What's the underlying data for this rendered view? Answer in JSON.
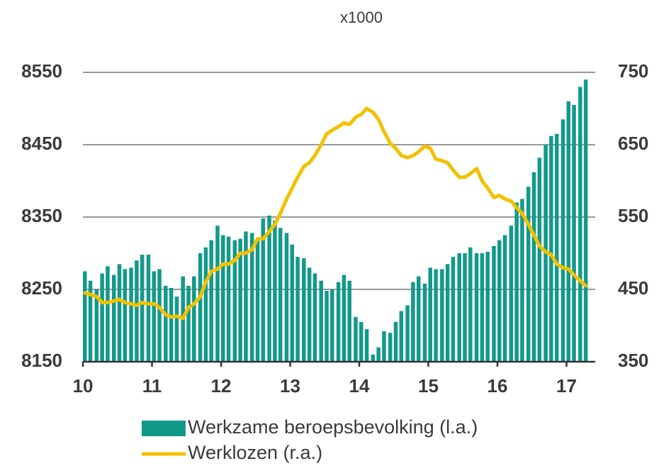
{
  "chart_data": {
    "type": "bar-line",
    "subtitle": "x1000",
    "x": [
      10,
      10.08,
      10.17,
      10.25,
      10.33,
      10.42,
      10.5,
      10.58,
      10.67,
      10.75,
      10.83,
      10.92,
      11,
      11.08,
      11.17,
      11.25,
      11.33,
      11.42,
      11.5,
      11.58,
      11.67,
      11.75,
      11.83,
      11.92,
      12,
      12.08,
      12.17,
      12.25,
      12.33,
      12.42,
      12.5,
      12.58,
      12.67,
      12.75,
      12.83,
      12.92,
      13,
      13.08,
      13.17,
      13.25,
      13.33,
      13.42,
      13.5,
      13.58,
      13.67,
      13.75,
      13.83,
      13.92,
      14,
      14.08,
      14.17,
      14.25,
      14.33,
      14.42,
      14.5,
      14.58,
      14.67,
      14.75,
      14.83,
      14.92,
      15,
      15.08,
      15.17,
      15.25,
      15.33,
      15.42,
      15.5,
      15.58,
      15.67,
      15.75,
      15.83,
      15.92,
      16,
      16.08,
      16.17,
      16.25,
      16.33,
      16.42,
      16.5,
      16.58,
      16.67,
      16.75,
      16.83,
      16.92,
      17,
      17.08,
      17.17,
      17.25
    ],
    "series": [
      {
        "name": "Werkzame beroepsbevolking (l.a.)",
        "color": "#13998a",
        "kind": "bar",
        "values": [
          8275,
          8262,
          8250,
          8272,
          8282,
          8270,
          8285,
          8278,
          8280,
          8290,
          8298,
          8298,
          8275,
          8278,
          8255,
          8252,
          8240,
          8268,
          8255,
          8268,
          8300,
          8308,
          8318,
          8338,
          8325,
          8323,
          8318,
          8320,
          8330,
          8328,
          8318,
          8348,
          8352,
          8345,
          8335,
          8328,
          8312,
          8295,
          8293,
          8280,
          8272,
          8262,
          8248,
          8250,
          8260,
          8270,
          8262,
          8212,
          8205,
          8195,
          8160,
          8170,
          8192,
          8190,
          8205,
          8220,
          8228,
          8260,
          8268,
          8258,
          8280,
          8278,
          8278,
          8285,
          8295,
          8300,
          8300,
          8308,
          8300,
          8300,
          8302,
          8310,
          8318,
          8325,
          8338,
          8370,
          8375,
          8392,
          8412,
          8432,
          8450,
          8462,
          8465,
          8485,
          8510,
          8505,
          8530,
          8540
        ]
      },
      {
        "name": "Werklozen (r.a.)",
        "color": "#f2c100",
        "kind": "line",
        "axis": "y2",
        "values": [
          445,
          443,
          440,
          432,
          432,
          434,
          436,
          432,
          430,
          428,
          432,
          430,
          430,
          425,
          415,
          412,
          413,
          410,
          425,
          430,
          440,
          460,
          475,
          478,
          485,
          485,
          490,
          500,
          500,
          505,
          520,
          520,
          530,
          540,
          555,
          575,
          590,
          605,
          620,
          625,
          635,
          650,
          665,
          670,
          675,
          680,
          678,
          688,
          692,
          700,
          695,
          685,
          668,
          652,
          645,
          635,
          632,
          635,
          640,
          648,
          645,
          630,
          628,
          625,
          615,
          605,
          605,
          610,
          617,
          600,
          590,
          577,
          580,
          575,
          572,
          563,
          555,
          540,
          525,
          510,
          502,
          498,
          485,
          480,
          478,
          470,
          462,
          455
        ]
      }
    ],
    "xlim": [
      10,
      17.4
    ],
    "xticks": [
      10,
      11,
      12,
      13,
      14,
      15,
      16,
      17
    ],
    "ylim": [
      8150,
      8550
    ],
    "yticks": [
      8150,
      8250,
      8350,
      8450,
      8550
    ],
    "y2lim": [
      350,
      750
    ],
    "y2ticks": [
      350,
      450,
      550,
      650,
      750
    ],
    "grid": true
  }
}
